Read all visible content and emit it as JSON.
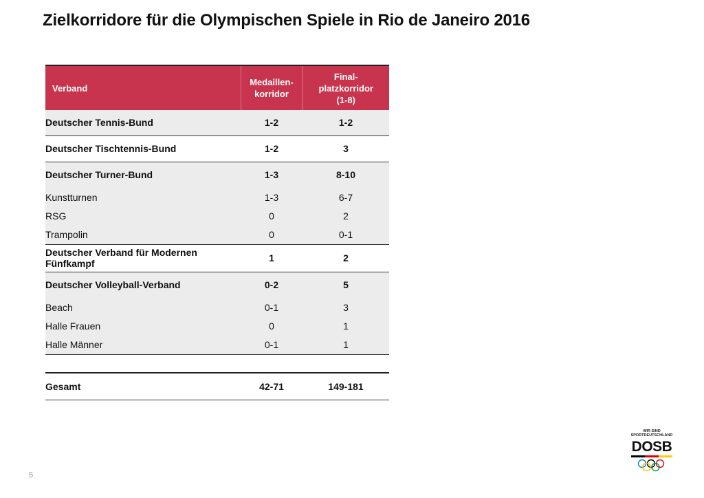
{
  "title": "Zielkorridore für die Olympischen Spiele in Rio de Janeiro 2016",
  "table": {
    "headers": {
      "verband": "Verband",
      "medaillen_line1": "Medaillen-",
      "medaillen_line2": "korridor",
      "final_line1": "Final-",
      "final_line2": "platzkorridor",
      "final_line3": "(1-8)"
    },
    "rows": [
      {
        "verband": "Deutscher Tennis-Bund",
        "medaillen": "1-2",
        "final": "1-2"
      },
      {
        "verband": "Deutscher Tischtennis-Bund",
        "medaillen": "1-2",
        "final": "3"
      },
      {
        "verband": "Deutscher Turner-Bund",
        "medaillen": "1-3",
        "final": "8-10"
      },
      {
        "verband": "Kunstturnen",
        "medaillen": "1-3",
        "final": "6-7"
      },
      {
        "verband": "RSG",
        "medaillen": "0",
        "final": "2"
      },
      {
        "verband": "Trampolin",
        "medaillen": "0",
        "final": "0-1"
      },
      {
        "verband_line1": "Deutscher Verband für Modernen",
        "verband_line2": "Fünfkampf",
        "medaillen": "1",
        "final": "2"
      },
      {
        "verband": "Deutscher Volleyball-Verband",
        "medaillen": "0-2",
        "final": "5"
      },
      {
        "verband": "Beach",
        "medaillen": "0-1",
        "final": "3"
      },
      {
        "verband": "Halle Frauen",
        "medaillen": "0",
        "final": "1"
      },
      {
        "verband": "Halle Männer",
        "medaillen": "0-1",
        "final": "1"
      }
    ],
    "total": {
      "label": "Gesamt",
      "medaillen": "42-71",
      "final": "149-181"
    }
  },
  "page_number": "5",
  "logo": {
    "tagline_line1": "WIR SIND",
    "tagline_line2": "SPORTDEUTSCHLAND",
    "name": "DOSB",
    "colors": [
      "#000000",
      "#dd0000",
      "#ffce00"
    ],
    "ring_colors": [
      "#0085c7",
      "#f4c300",
      "#000000",
      "#009f3d",
      "#df0024"
    ]
  },
  "colors": {
    "header_bg": "#c8344d",
    "row_shade": "#ececec"
  }
}
